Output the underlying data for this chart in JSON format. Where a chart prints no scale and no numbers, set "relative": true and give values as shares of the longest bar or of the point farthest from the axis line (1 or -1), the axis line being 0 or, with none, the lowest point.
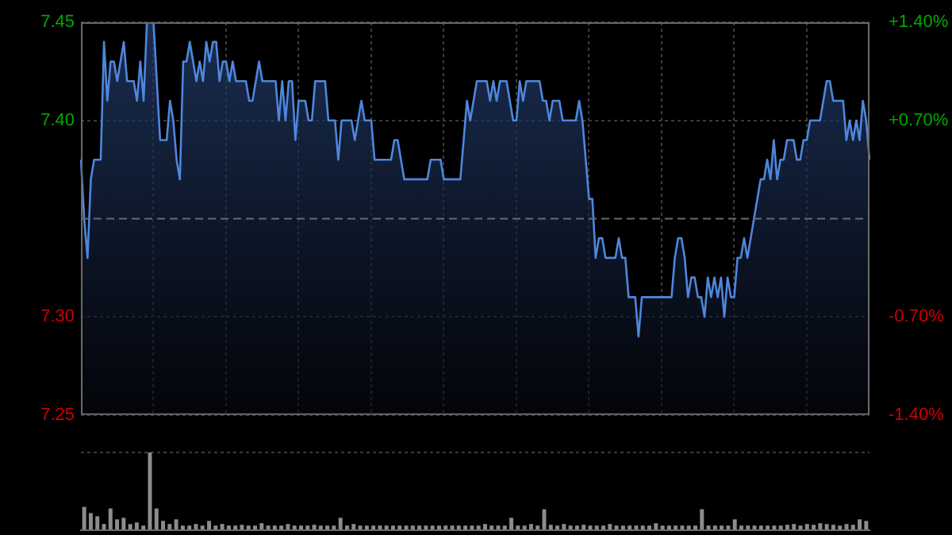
{
  "chart_data": [
    {
      "type": "area",
      "categories": [
        null,
        null,
        null,
        null,
        null,
        null,
        null,
        null,
        null,
        null,
        null,
        null,
        null,
        null,
        null,
        null,
        null,
        null,
        null,
        null,
        null,
        null,
        null,
        null,
        null,
        null,
        null,
        null,
        null,
        null,
        null,
        null,
        null,
        null,
        null,
        null,
        null,
        null,
        null,
        null,
        null,
        null,
        null,
        null,
        null,
        null,
        null,
        null,
        null,
        null,
        null,
        null,
        null,
        null,
        null,
        null,
        null,
        null,
        null,
        null,
        null,
        null,
        null,
        null,
        null,
        null,
        null,
        null,
        null,
        null,
        null,
        null,
        null,
        null,
        null,
        null,
        null,
        null,
        null,
        null,
        null,
        null,
        null,
        null,
        null,
        null,
        null,
        null,
        null,
        null,
        null,
        null,
        null,
        null,
        null,
        null,
        null,
        null,
        null,
        null,
        null,
        null,
        null,
        null,
        null,
        null,
        null,
        null,
        null,
        null,
        null,
        null,
        null,
        null,
        null,
        null,
        null,
        null,
        null,
        null,
        null,
        null,
        null,
        null,
        null,
        null,
        null,
        null,
        null,
        null,
        null,
        null,
        null,
        null,
        null,
        null,
        null,
        null,
        null,
        null,
        null,
        null,
        null,
        null,
        null,
        null,
        null,
        null,
        null,
        null,
        null,
        null,
        null,
        null,
        null,
        null,
        null,
        null,
        null,
        null,
        null,
        null,
        null,
        null,
        null,
        null,
        null,
        null,
        null,
        null,
        null,
        null,
        null,
        null,
        null,
        null,
        null,
        null,
        null,
        null,
        null,
        null,
        null,
        null,
        null,
        null,
        null,
        null,
        null,
        null,
        null,
        null,
        null,
        null,
        null,
        null,
        null,
        null,
        null,
        null,
        null,
        null,
        null,
        null,
        null,
        null,
        null,
        null,
        null,
        null,
        null,
        null,
        null,
        null,
        null,
        null,
        null,
        null,
        null,
        null,
        null,
        null,
        null,
        null,
        null,
        null,
        null,
        null,
        null,
        null,
        null,
        null,
        null,
        null,
        null,
        null,
        null,
        null,
        null,
        null
      ],
      "ylim": [
        7.25,
        7.45
      ],
      "yticks": [
        {
          "value": 7.25,
          "label": "7.25"
        },
        {
          "value": 7.3,
          "label": "7.30"
        },
        {
          "value": 7.4,
          "label": "7.40"
        },
        {
          "value": 7.45,
          "label": "7.45"
        }
      ],
      "y2lim": [
        -1.4,
        1.4
      ],
      "y2ticks": [
        {
          "value": -1.4,
          "label": "-1.40%"
        },
        {
          "value": -0.7,
          "label": "-0.70%"
        },
        {
          "value": 0.7,
          "label": "+0.70%"
        },
        {
          "value": 1.4,
          "label": "+1.40%"
        }
      ],
      "tick_labels": "y",
      "grid": true,
      "ref_lines": [
        {
          "axis": "y",
          "value": 7.35,
          "label": null,
          "line_style": "dashed",
          "color": "#6a6a6a"
        }
      ],
      "series": [
        {
          "color": "#4f86dd",
          "values": [
            7.38,
            7.35,
            7.33,
            7.37,
            7.38,
            7.38,
            7.38,
            7.44,
            7.41,
            7.43,
            7.43,
            7.42,
            7.43,
            7.44,
            7.42,
            7.42,
            7.42,
            7.41,
            7.43,
            7.41,
            7.45,
            7.45,
            7.45,
            7.42,
            7.39,
            7.39,
            7.39,
            7.41,
            7.4,
            7.38,
            7.37,
            7.43,
            7.43,
            7.44,
            7.43,
            7.42,
            7.43,
            7.42,
            7.44,
            7.43,
            7.44,
            7.44,
            7.42,
            7.43,
            7.43,
            7.42,
            7.43,
            7.42,
            7.42,
            7.42,
            7.42,
            7.41,
            7.41,
            7.42,
            7.43,
            7.42,
            7.42,
            7.42,
            7.42,
            7.42,
            7.4,
            7.42,
            7.4,
            7.42,
            7.42,
            7.39,
            7.41,
            7.41,
            7.41,
            7.4,
            7.4,
            7.42,
            7.42,
            7.42,
            7.42,
            7.4,
            7.4,
            7.4,
            7.38,
            7.4,
            7.4,
            7.4,
            7.4,
            7.39,
            7.4,
            7.41,
            7.4,
            7.4,
            7.4,
            7.38,
            7.38,
            7.38,
            7.38,
            7.38,
            7.38,
            7.39,
            7.39,
            7.38,
            7.37,
            7.37,
            7.37,
            7.37,
            7.37,
            7.37,
            7.37,
            7.37,
            7.38,
            7.38,
            7.38,
            7.38,
            7.37,
            7.37,
            7.37,
            7.37,
            7.37,
            7.37,
            7.39,
            7.41,
            7.4,
            7.41,
            7.42,
            7.42,
            7.42,
            7.42,
            7.41,
            7.42,
            7.41,
            7.42,
            7.42,
            7.42,
            7.41,
            7.4,
            7.4,
            7.42,
            7.41,
            7.42,
            7.42,
            7.42,
            7.42,
            7.42,
            7.41,
            7.41,
            7.4,
            7.41,
            7.41,
            7.41,
            7.4,
            7.4,
            7.4,
            7.4,
            7.4,
            7.41,
            7.4,
            7.38,
            7.36,
            7.36,
            7.33,
            7.34,
            7.34,
            7.33,
            7.33,
            7.33,
            7.33,
            7.34,
            7.33,
            7.33,
            7.31,
            7.31,
            7.31,
            7.29,
            7.31,
            7.31,
            7.31,
            7.31,
            7.31,
            7.31,
            7.31,
            7.31,
            7.31,
            7.31,
            7.33,
            7.34,
            7.34,
            7.33,
            7.31,
            7.32,
            7.32,
            7.31,
            7.31,
            7.3,
            7.32,
            7.31,
            7.32,
            7.31,
            7.32,
            7.3,
            7.32,
            7.31,
            7.31,
            7.33,
            7.33,
            7.34,
            7.33,
            7.34,
            7.35,
            7.36,
            7.37,
            7.37,
            7.38,
            7.37,
            7.39,
            7.37,
            7.38,
            7.38,
            7.39,
            7.39,
            7.39,
            7.38,
            7.38,
            7.39,
            7.39,
            7.4,
            7.4,
            7.4,
            7.4,
            7.41,
            7.42,
            7.42,
            7.41,
            7.41,
            7.41,
            7.41,
            7.39,
            7.4,
            7.39,
            7.4,
            7.39,
            7.41,
            7.4,
            7.38
          ]
        }
      ]
    },
    {
      "type": "bar",
      "relative": true,
      "grid": "y",
      "color": "#8c8c8c",
      "categories": [
        null,
        null,
        null,
        null,
        null,
        null,
        null,
        null,
        null,
        null,
        null,
        null,
        null,
        null,
        null,
        null,
        null,
        null,
        null,
        null,
        null,
        null,
        null,
        null,
        null,
        null,
        null,
        null,
        null,
        null,
        null,
        null,
        null,
        null,
        null,
        null,
        null,
        null,
        null,
        null,
        null,
        null,
        null,
        null,
        null,
        null,
        null,
        null,
        null,
        null,
        null,
        null,
        null,
        null,
        null,
        null,
        null,
        null,
        null,
        null,
        null,
        null,
        null,
        null,
        null,
        null,
        null,
        null,
        null,
        null,
        null,
        null,
        null,
        null,
        null,
        null,
        null,
        null,
        null,
        null,
        null,
        null,
        null,
        null,
        null,
        null,
        null,
        null,
        null,
        null,
        null,
        null,
        null,
        null,
        null,
        null,
        null,
        null,
        null,
        null,
        null,
        null,
        null,
        null,
        null,
        null,
        null,
        null,
        null,
        null,
        null,
        null,
        null,
        null,
        null,
        null,
        null,
        null,
        null,
        null
      ],
      "values": [
        0.3,
        0.22,
        0.18,
        0.08,
        0.28,
        0.14,
        0.16,
        0.08,
        0.1,
        0.06,
        1.0,
        0.28,
        0.12,
        0.08,
        0.14,
        0.06,
        0.06,
        0.08,
        0.06,
        0.12,
        0.06,
        0.08,
        0.06,
        0.06,
        0.07,
        0.06,
        0.06,
        0.09,
        0.06,
        0.06,
        0.06,
        0.08,
        0.06,
        0.06,
        0.06,
        0.07,
        0.06,
        0.06,
        0.06,
        0.16,
        0.06,
        0.08,
        0.06,
        0.06,
        0.06,
        0.06,
        0.06,
        0.06,
        0.06,
        0.06,
        0.06,
        0.06,
        0.06,
        0.06,
        0.06,
        0.06,
        0.06,
        0.06,
        0.06,
        0.06,
        0.06,
        0.08,
        0.06,
        0.06,
        0.06,
        0.16,
        0.06,
        0.06,
        0.08,
        0.06,
        0.27,
        0.07,
        0.06,
        0.08,
        0.06,
        0.06,
        0.07,
        0.06,
        0.06,
        0.06,
        0.08,
        0.06,
        0.06,
        0.06,
        0.06,
        0.06,
        0.06,
        0.09,
        0.06,
        0.06,
        0.06,
        0.06,
        0.06,
        0.06,
        0.27,
        0.06,
        0.06,
        0.06,
        0.06,
        0.14,
        0.06,
        0.06,
        0.06,
        0.06,
        0.06,
        0.06,
        0.06,
        0.07,
        0.08,
        0.06,
        0.08,
        0.07,
        0.09,
        0.08,
        0.07,
        0.06,
        0.08,
        0.07,
        0.14,
        0.12
      ]
    }
  ]
}
